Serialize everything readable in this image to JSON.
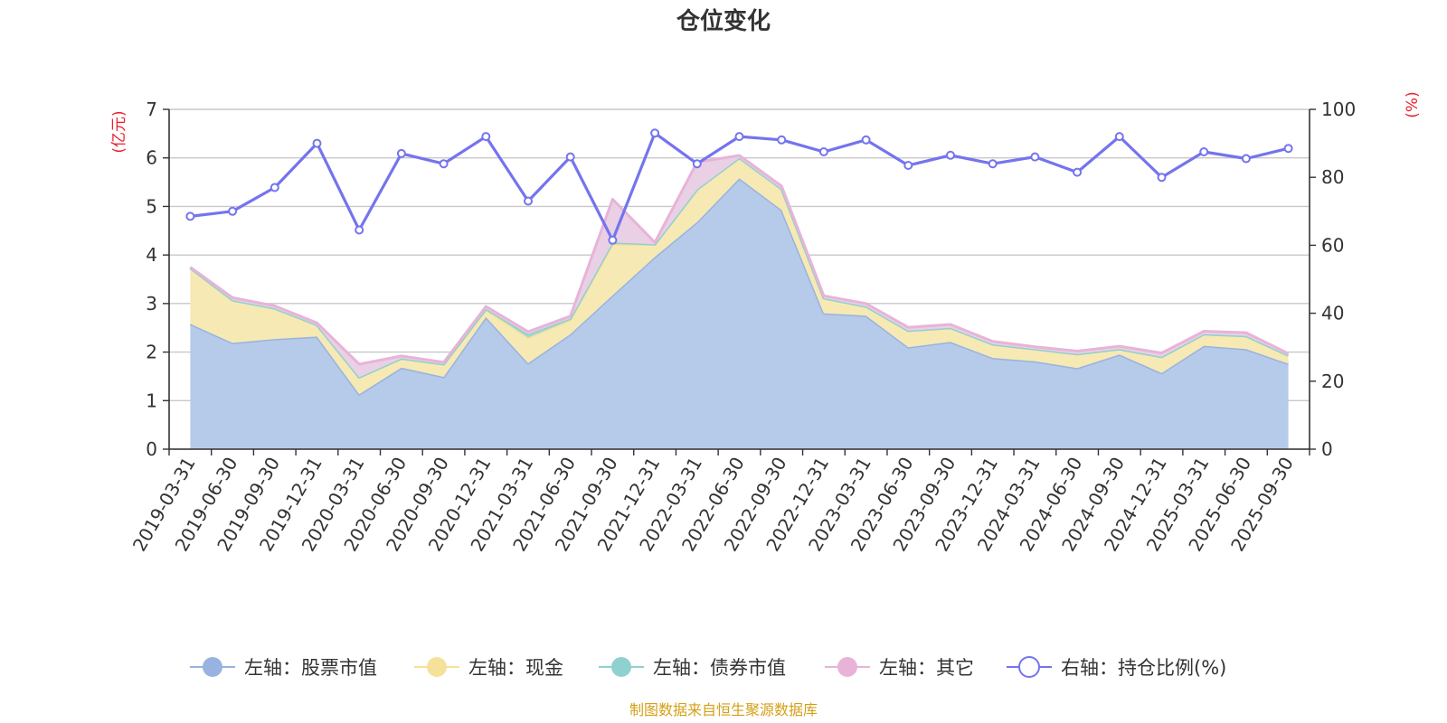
{
  "chart_data": {
    "type": "area",
    "title": "仓位变化",
    "left_axis_unit": "(亿元)",
    "right_axis_unit": "(%)",
    "ylim_left": [
      0,
      7
    ],
    "yticks_left": [
      "0",
      "1",
      "2",
      "3",
      "4",
      "5",
      "6",
      "7"
    ],
    "ylim_right": [
      0,
      100
    ],
    "yticks_right": [
      "0",
      "20",
      "40",
      "60",
      "80",
      "100"
    ],
    "grid": true,
    "stacked": true,
    "categories": [
      "2019-03-31",
      "2019-06-30",
      "2019-09-30",
      "2019-12-31",
      "2020-03-31",
      "2020-06-30",
      "2020-09-30",
      "2020-12-31",
      "2021-03-31",
      "2021-06-30",
      "2021-09-30",
      "2021-12-31",
      "2022-03-31",
      "2022-06-30",
      "2022-09-30",
      "2022-12-31",
      "2023-03-31",
      "2023-06-30",
      "2023-09-30",
      "2023-12-31",
      "2024-03-31",
      "2024-06-30",
      "2024-09-30",
      "2024-12-31",
      "2025-03-31",
      "2025-06-30",
      "2025-09-30"
    ],
    "series": [
      {
        "name": "左轴：股票市值",
        "axis": "left",
        "color": "#98b3e0",
        "fill": "#b6caea",
        "values": [
          2.58,
          2.19,
          2.27,
          2.32,
          1.13,
          1.68,
          1.49,
          2.72,
          1.77,
          2.37,
          3.17,
          3.96,
          4.68,
          5.58,
          4.93,
          2.8,
          2.75,
          2.1,
          2.21,
          1.88,
          1.81,
          1.67,
          1.95,
          1.57,
          2.13,
          2.06,
          1.76
        ]
      },
      {
        "name": "左轴：现金",
        "axis": "left",
        "color": "#f5e19a",
        "fill": "#f7e9b3",
        "values": [
          1.15,
          0.88,
          0.63,
          0.24,
          0.35,
          0.19,
          0.26,
          0.15,
          0.53,
          0.29,
          1.05,
          0.26,
          0.67,
          0.42,
          0.43,
          0.31,
          0.19,
          0.34,
          0.29,
          0.28,
          0.25,
          0.29,
          0.11,
          0.33,
          0.24,
          0.27,
          0.17
        ]
      },
      {
        "name": "左轴：债券市值",
        "axis": "left",
        "color": "#8fd1cf",
        "fill": "#9fd8d4",
        "values": [
          0,
          0,
          0,
          0,
          0,
          0,
          0,
          0.02,
          0.07,
          0.03,
          0.04,
          0,
          0,
          0,
          0,
          0,
          0,
          0,
          0,
          0,
          0,
          0,
          0,
          0,
          0,
          0,
          0
        ]
      },
      {
        "name": "左轴：其它",
        "axis": "left",
        "color": "#e7b4d8",
        "fill": "#ead0e5",
        "values": [
          0.02,
          0.05,
          0.05,
          0.04,
          0.27,
          0.05,
          0.04,
          0.05,
          0.05,
          0.05,
          0.89,
          0.04,
          0.56,
          0.05,
          0.06,
          0.05,
          0.06,
          0.07,
          0.07,
          0.06,
          0.05,
          0.06,
          0.06,
          0.08,
          0.06,
          0.07,
          0.04
        ]
      },
      {
        "name": "右轴：持仓比例(%)",
        "axis": "right",
        "color": "#7474ee",
        "values": [
          68.5,
          70.0,
          77.0,
          90.0,
          64.5,
          87.0,
          84.0,
          92.0,
          73.0,
          86.0,
          61.5,
          93.0,
          84.0,
          92.0,
          91.0,
          87.5,
          91.0,
          83.5,
          86.5,
          84.0,
          86.0,
          81.5,
          92.0,
          80.0,
          87.5,
          85.5,
          88.5
        ]
      }
    ],
    "source": "制图数据来自恒生聚源数据库"
  }
}
